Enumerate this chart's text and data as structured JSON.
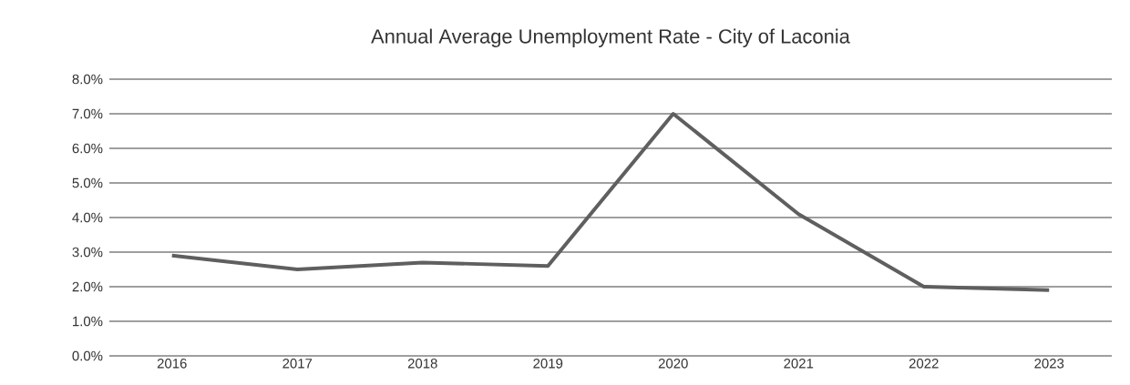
{
  "chart_data": {
    "type": "line",
    "title": "Annual Average Unemployment Rate - City of Laconia",
    "categories": [
      "2016",
      "2017",
      "2018",
      "2019",
      "2020",
      "2021",
      "2022",
      "2023"
    ],
    "series": [
      {
        "color": "#5f5f5f",
        "values": [
          2.9,
          2.5,
          2.7,
          2.6,
          7.0,
          4.1,
          2.0,
          1.9
        ]
      }
    ],
    "ylim": [
      0,
      8
    ],
    "yticks": [
      {
        "value": 0,
        "label": "0.0%"
      },
      {
        "value": 1,
        "label": "1.0%"
      },
      {
        "value": 2,
        "label": "2.0%"
      },
      {
        "value": 3,
        "label": "3.0%"
      },
      {
        "value": 4,
        "label": "4.0%"
      },
      {
        "value": 5,
        "label": "5.0%"
      },
      {
        "value": 6,
        "label": "6.0%"
      },
      {
        "value": 7,
        "label": "7.0%"
      },
      {
        "value": 8,
        "label": "8.0%"
      }
    ],
    "grid": "y",
    "marker": "none",
    "line_style": "solid"
  }
}
